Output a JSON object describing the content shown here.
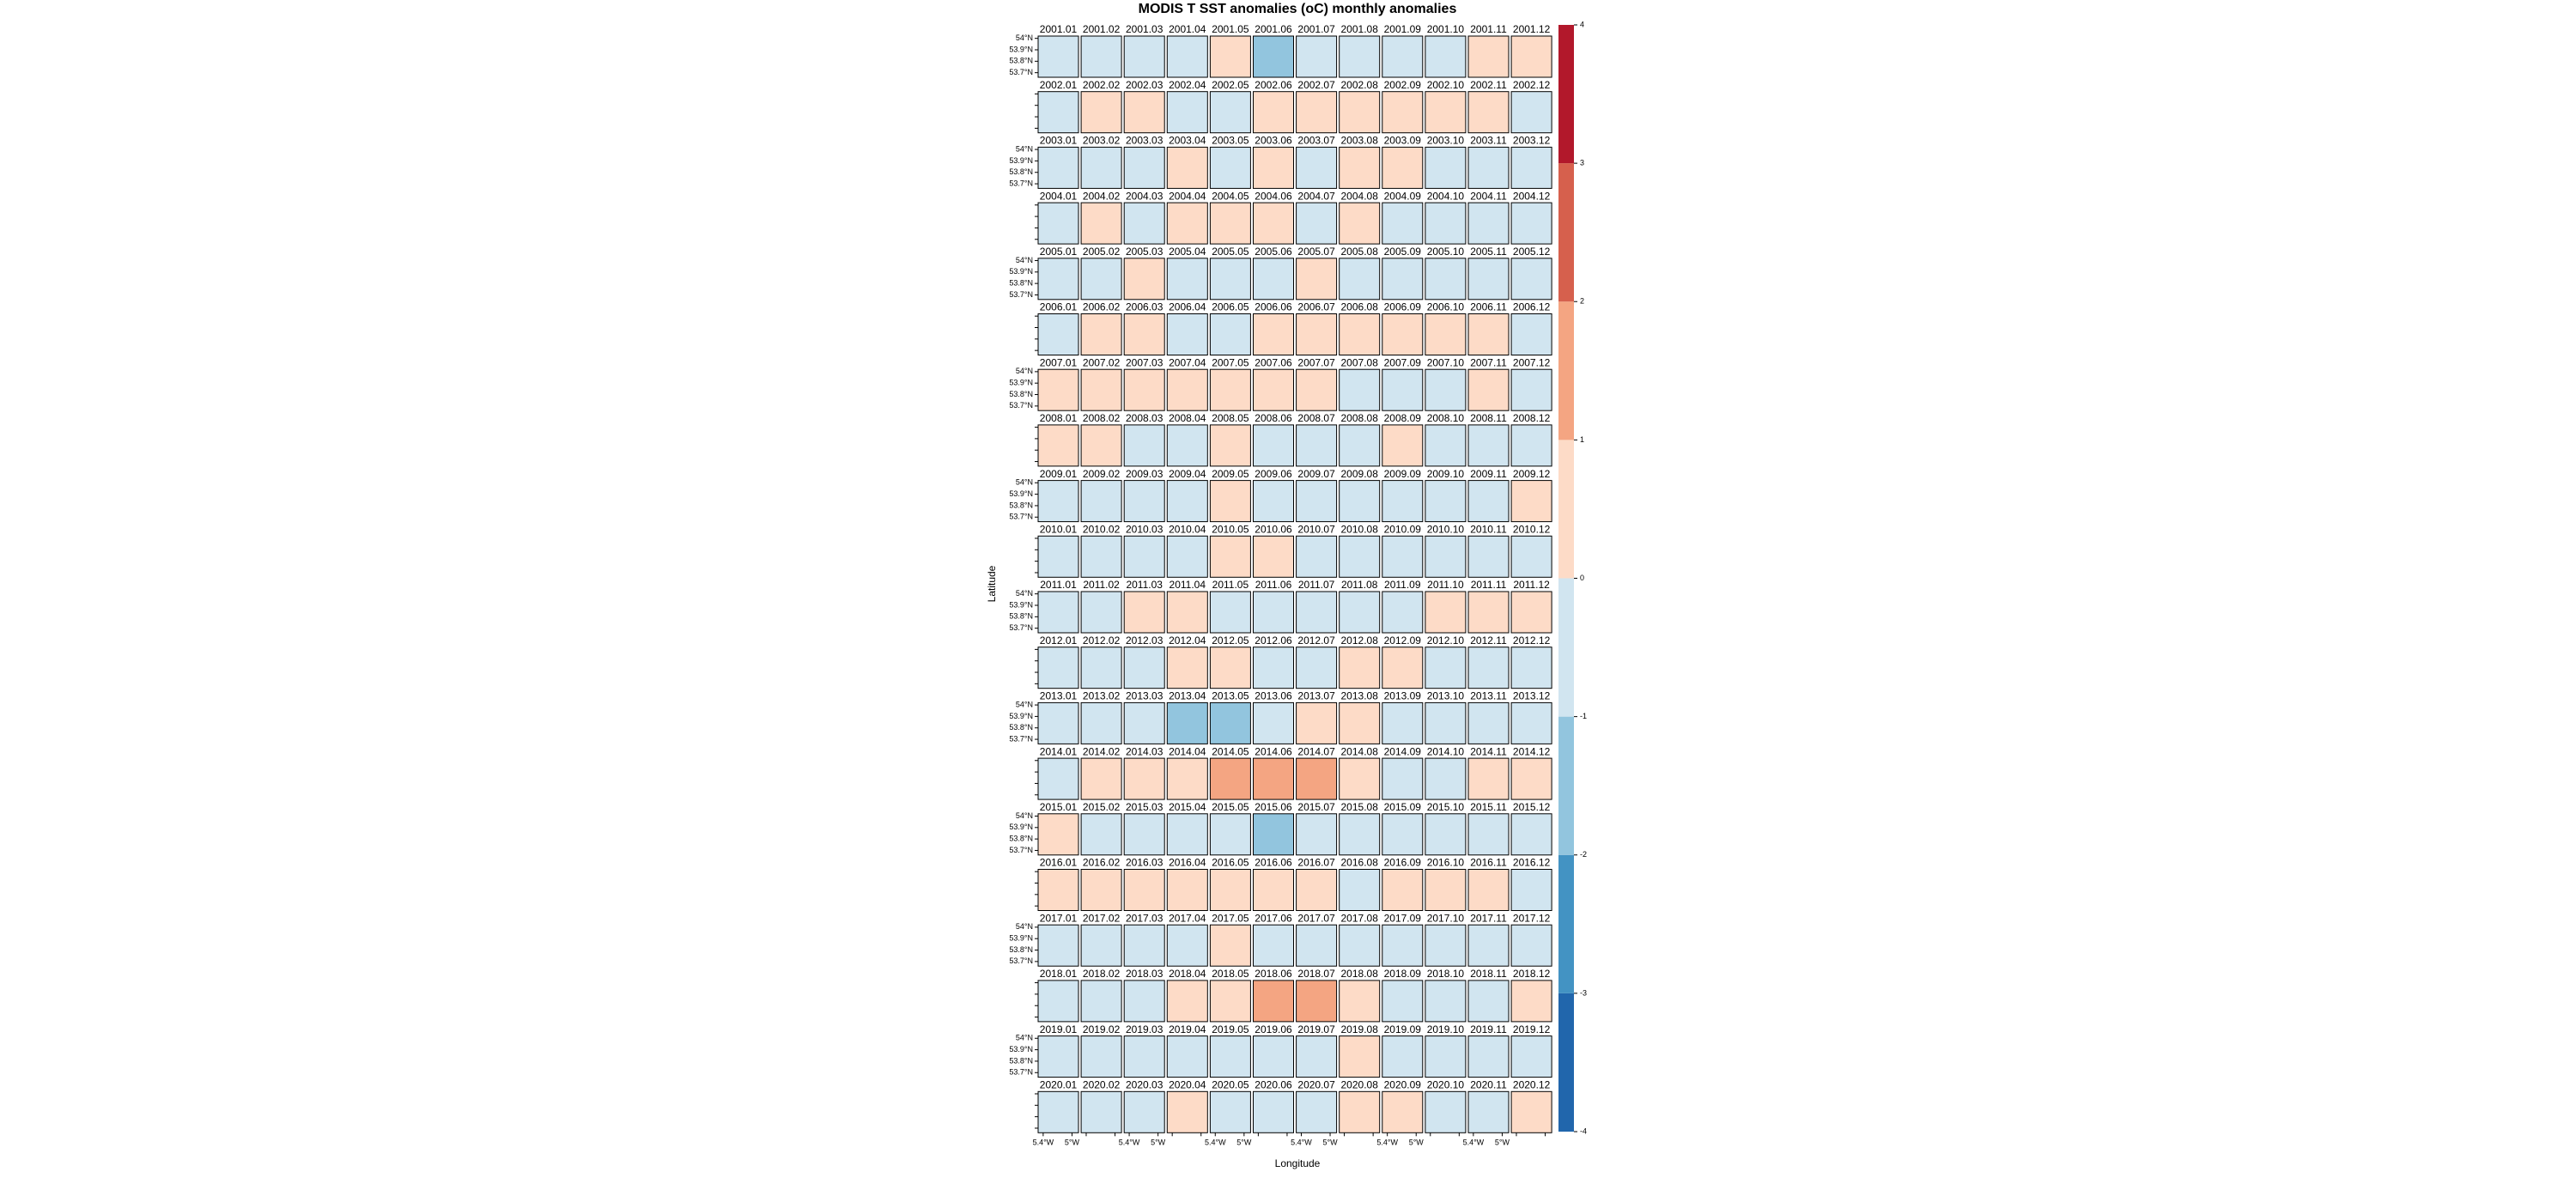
{
  "chart_data": {
    "type": "facet-map",
    "title": "MODIS T SST anomalies (oC) monthly anomalies",
    "xlabel": "Longitude",
    "ylabel": "Latitude",
    "categories": [
      "2001.01",
      "2001.02",
      "2001.03",
      "2001.04",
      "2001.05",
      "2001.06",
      "2001.07",
      "2001.08",
      "2001.09",
      "2001.10",
      "2001.11",
      "2001.12",
      "2002.01",
      "2002.02",
      "2002.03",
      "2002.04",
      "2002.05",
      "2002.06",
      "2002.07",
      "2002.08",
      "2002.09",
      "2002.10",
      "2002.11",
      "2002.12",
      "2003.01",
      "2003.02",
      "2003.03",
      "2003.04",
      "2003.05",
      "2003.06",
      "2003.07",
      "2003.08",
      "2003.09",
      "2003.10",
      "2003.11",
      "2003.12",
      "2004.01",
      "2004.02",
      "2004.03",
      "2004.04",
      "2004.05",
      "2004.06",
      "2004.07",
      "2004.08",
      "2004.09",
      "2004.10",
      "2004.11",
      "2004.12",
      "2005.01",
      "2005.02",
      "2005.03",
      "2005.04",
      "2005.05",
      "2005.06",
      "2005.07",
      "2005.08",
      "2005.09",
      "2005.10",
      "2005.11",
      "2005.12",
      "2006.01",
      "2006.02",
      "2006.03",
      "2006.04",
      "2006.05",
      "2006.06",
      "2006.07",
      "2006.08",
      "2006.09",
      "2006.10",
      "2006.11",
      "2006.12",
      "2007.01",
      "2007.02",
      "2007.03",
      "2007.04",
      "2007.05",
      "2007.06",
      "2007.07",
      "2007.08",
      "2007.09",
      "2007.10",
      "2007.11",
      "2007.12",
      "2008.01",
      "2008.02",
      "2008.03",
      "2008.04",
      "2008.05",
      "2008.06",
      "2008.07",
      "2008.08",
      "2008.09",
      "2008.10",
      "2008.11",
      "2008.12",
      "2009.01",
      "2009.02",
      "2009.03",
      "2009.04",
      "2009.05",
      "2009.06",
      "2009.07",
      "2009.08",
      "2009.09",
      "2009.10",
      "2009.11",
      "2009.12",
      "2010.01",
      "2010.02",
      "2010.03",
      "2010.04",
      "2010.05",
      "2010.06",
      "2010.07",
      "2010.08",
      "2010.09",
      "2010.10",
      "2010.11",
      "2010.12",
      "2011.01",
      "2011.02",
      "2011.03",
      "2011.04",
      "2011.05",
      "2011.06",
      "2011.07",
      "2011.08",
      "2011.09",
      "2011.10",
      "2011.11",
      "2011.12",
      "2012.01",
      "2012.02",
      "2012.03",
      "2012.04",
      "2012.05",
      "2012.06",
      "2012.07",
      "2012.08",
      "2012.09",
      "2012.10",
      "2012.11",
      "2012.12",
      "2013.01",
      "2013.02",
      "2013.03",
      "2013.04",
      "2013.05",
      "2013.06",
      "2013.07",
      "2013.08",
      "2013.09",
      "2013.10",
      "2013.11",
      "2013.12",
      "2014.01",
      "2014.02",
      "2014.03",
      "2014.04",
      "2014.05",
      "2014.06",
      "2014.07",
      "2014.08",
      "2014.09",
      "2014.10",
      "2014.11",
      "2014.12",
      "2015.01",
      "2015.02",
      "2015.03",
      "2015.04",
      "2015.05",
      "2015.06",
      "2015.07",
      "2015.08",
      "2015.09",
      "2015.10",
      "2015.11",
      "2015.12",
      "2016.01",
      "2016.02",
      "2016.03",
      "2016.04",
      "2016.05",
      "2016.06",
      "2016.07",
      "2016.08",
      "2016.09",
      "2016.10",
      "2016.11",
      "2016.12",
      "2017.01",
      "2017.02",
      "2017.03",
      "2017.04",
      "2017.05",
      "2017.06",
      "2017.07",
      "2017.08",
      "2017.09",
      "2017.10",
      "2017.11",
      "2017.12",
      "2018.01",
      "2018.02",
      "2018.03",
      "2018.04",
      "2018.05",
      "2018.06",
      "2018.07",
      "2018.08",
      "2018.09",
      "2018.10",
      "2018.11",
      "2018.12",
      "2019.01",
      "2019.02",
      "2019.03",
      "2019.04",
      "2019.05",
      "2019.06",
      "2019.07",
      "2019.08",
      "2019.09",
      "2019.10",
      "2019.11",
      "2019.12",
      "2020.01",
      "2020.02",
      "2020.03",
      "2020.04",
      "2020.05",
      "2020.06",
      "2020.07",
      "2020.08",
      "2020.09",
      "2020.10",
      "2020.11",
      "2020.12"
    ],
    "values": [
      -0.5,
      -0.5,
      -0.5,
      -0.5,
      0.5,
      -1.5,
      -0.5,
      -0.5,
      -0.5,
      -0.5,
      0.5,
      0.5,
      -0.5,
      0.5,
      0.5,
      -0.5,
      -0.5,
      0.5,
      0.5,
      0.5,
      0.5,
      0.5,
      0.5,
      -0.5,
      -0.5,
      -0.5,
      -0.5,
      0.5,
      -0.5,
      0.5,
      -0.5,
      0.5,
      0.5,
      -0.5,
      -0.5,
      -0.5,
      -0.5,
      0.5,
      -0.5,
      0.5,
      0.5,
      0.5,
      -0.5,
      0.5,
      -0.5,
      -0.5,
      -0.5,
      -0.5,
      -0.5,
      -0.5,
      0.5,
      -0.5,
      -0.5,
      -0.5,
      0.5,
      -0.5,
      -0.5,
      -0.5,
      -0.5,
      -0.5,
      -0.5,
      0.5,
      0.5,
      -0.5,
      -0.5,
      0.5,
      0.5,
      0.5,
      0.5,
      0.5,
      0.5,
      -0.5,
      0.5,
      0.5,
      0.5,
      0.5,
      0.5,
      0.5,
      0.5,
      -0.5,
      -0.5,
      -0.5,
      0.5,
      -0.5,
      0.5,
      0.5,
      -0.5,
      -0.5,
      0.5,
      -0.5,
      -0.5,
      -0.5,
      0.5,
      -0.5,
      -0.5,
      -0.5,
      -0.5,
      -0.5,
      -0.5,
      -0.5,
      0.5,
      -0.5,
      -0.5,
      -0.5,
      -0.5,
      -0.5,
      -0.5,
      0.5,
      -0.5,
      -0.5,
      -0.5,
      -0.5,
      0.5,
      0.5,
      -0.5,
      -0.5,
      -0.5,
      -0.5,
      -0.5,
      -0.5,
      -0.5,
      -0.5,
      0.5,
      0.5,
      -0.5,
      -0.5,
      -0.5,
      -0.5,
      -0.5,
      0.5,
      0.5,
      0.5,
      -0.5,
      -0.5,
      -0.5,
      0.5,
      0.5,
      -0.5,
      -0.5,
      0.5,
      0.5,
      -0.5,
      -0.5,
      -0.5,
      -0.5,
      -0.5,
      -0.5,
      -1.5,
      -1.5,
      -0.5,
      0.5,
      0.5,
      -0.5,
      -0.5,
      -0.5,
      -0.5,
      -0.5,
      0.5,
      0.5,
      0.5,
      1.5,
      1.5,
      1.5,
      0.5,
      -0.5,
      -0.5,
      0.5,
      0.5,
      0.5,
      -0.5,
      -0.5,
      -0.5,
      -0.5,
      -1.5,
      -0.5,
      -0.5,
      -0.5,
      -0.5,
      -0.5,
      -0.5,
      0.5,
      0.5,
      0.5,
      0.5,
      0.5,
      0.5,
      0.5,
      -0.5,
      0.5,
      0.5,
      0.5,
      -0.5,
      -0.5,
      -0.5,
      -0.5,
      -0.5,
      0.5,
      -0.5,
      -0.5,
      -0.5,
      -0.5,
      -0.5,
      -0.5,
      -0.5,
      -0.5,
      -0.5,
      -0.5,
      0.5,
      0.5,
      1.5,
      1.5,
      0.5,
      -0.5,
      -0.5,
      -0.5,
      0.5,
      -0.5,
      -0.5,
      -0.5,
      -0.5,
      -0.5,
      -0.5,
      -0.5,
      0.5,
      -0.5,
      -0.5,
      -0.5,
      -0.5,
      -0.5,
      -0.5,
      -0.5,
      0.5,
      -0.5,
      -0.5,
      -0.5,
      0.5,
      0.5,
      -0.5,
      -0.5,
      0.5
    ],
    "ncols": 12,
    "xlim": [
      -5.47,
      -4.91
    ],
    "xticks": [
      {
        "value": -5.4,
        "label": "5.4°W"
      },
      {
        "value": -5,
        "label": "5°W"
      }
    ],
    "ylim": [
      53.66,
      54.02
    ],
    "yticks": [
      {
        "value": 54,
        "label": "54°N"
      },
      {
        "value": 53.9,
        "label": "53.9°N"
      },
      {
        "value": 53.8,
        "label": "53.8°N"
      },
      {
        "value": 53.7,
        "label": "53.7°N"
      }
    ],
    "clim": [
      -4,
      4
    ],
    "cticks": [
      -4,
      -3,
      -2,
      -1,
      0,
      1,
      2,
      3,
      4
    ],
    "colors": [
      "#2166ac",
      "#4393c3",
      "#92c5de",
      "#d1e5f0",
      "#fddbc7",
      "#f4a582",
      "#d6604d",
      "#b2182b"
    ]
  }
}
